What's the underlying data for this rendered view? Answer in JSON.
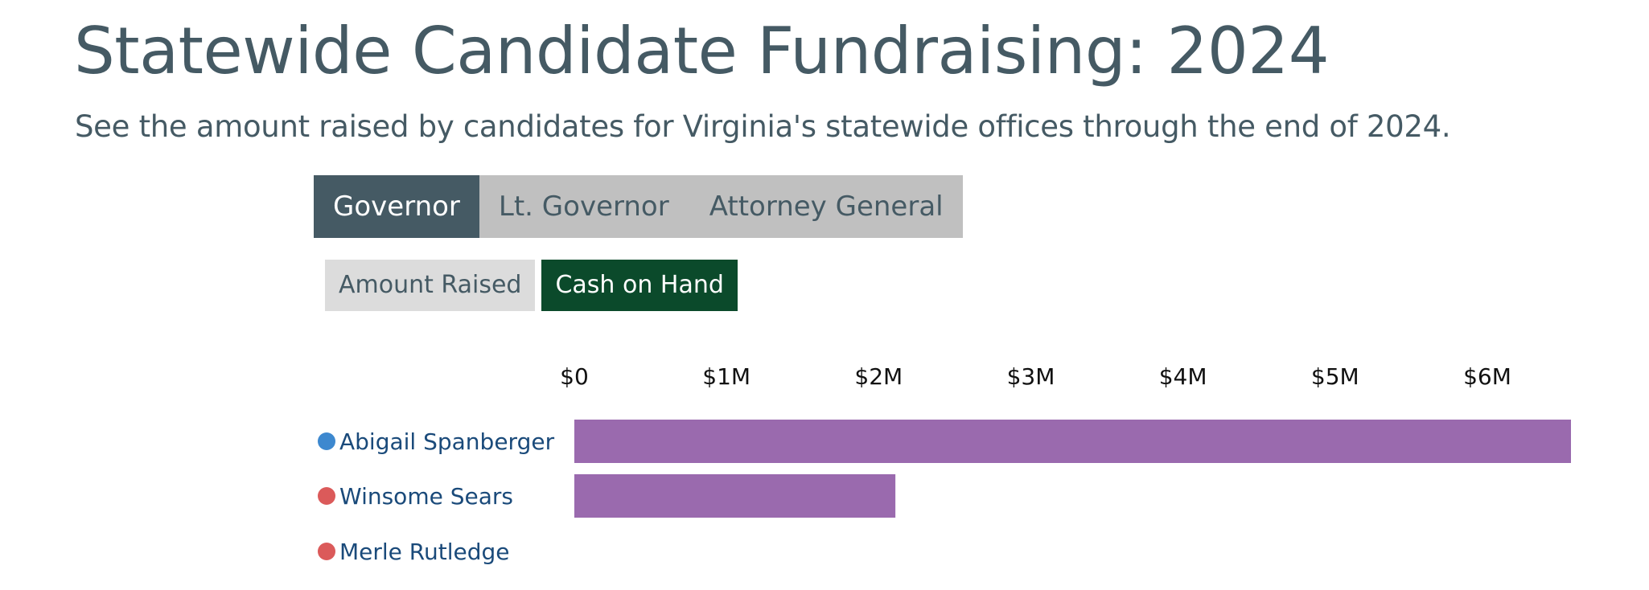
{
  "title": "Statewide Candidate Fundraising: 2024",
  "subtitle": "See the amount raised by candidates for Virginia's statewide offices through the end of 2024.",
  "office_tabs": [
    {
      "label": "Governor",
      "active": true
    },
    {
      "label": "Lt. Governor",
      "active": false
    },
    {
      "label": "Attorney General",
      "active": false
    }
  ],
  "metric_toggle": [
    {
      "label": "Amount Raised",
      "active": false
    },
    {
      "label": "Cash on Hand",
      "active": true
    }
  ],
  "colors": {
    "bar": "#9a6aae",
    "democrat": "#3d88cf",
    "republican": "#db5a5a",
    "tab_active": "#455a64",
    "tab_inactive": "#c0c0c0",
    "metric_active": "#0b4a2b",
    "metric_inactive": "#dcdcdc"
  },
  "chart_data": {
    "type": "bar",
    "orientation": "horizontal",
    "x_axis": {
      "position": "top",
      "ticks": [
        0,
        1000000,
        2000000,
        3000000,
        4000000,
        5000000,
        6000000
      ],
      "tick_labels": [
        "$0",
        "$1M",
        "$2M",
        "$3M",
        "$4M",
        "$5M",
        "$6M"
      ],
      "xlim": [
        0,
        6550000
      ]
    },
    "categories": [
      "Abigail Spanberger",
      "Winsome Sears",
      "Merle Rutledge"
    ],
    "party_dots": [
      "democrat",
      "republican",
      "republican"
    ],
    "values": [
      6550000,
      2110000,
      0
    ],
    "grid": false,
    "legend": "none"
  }
}
